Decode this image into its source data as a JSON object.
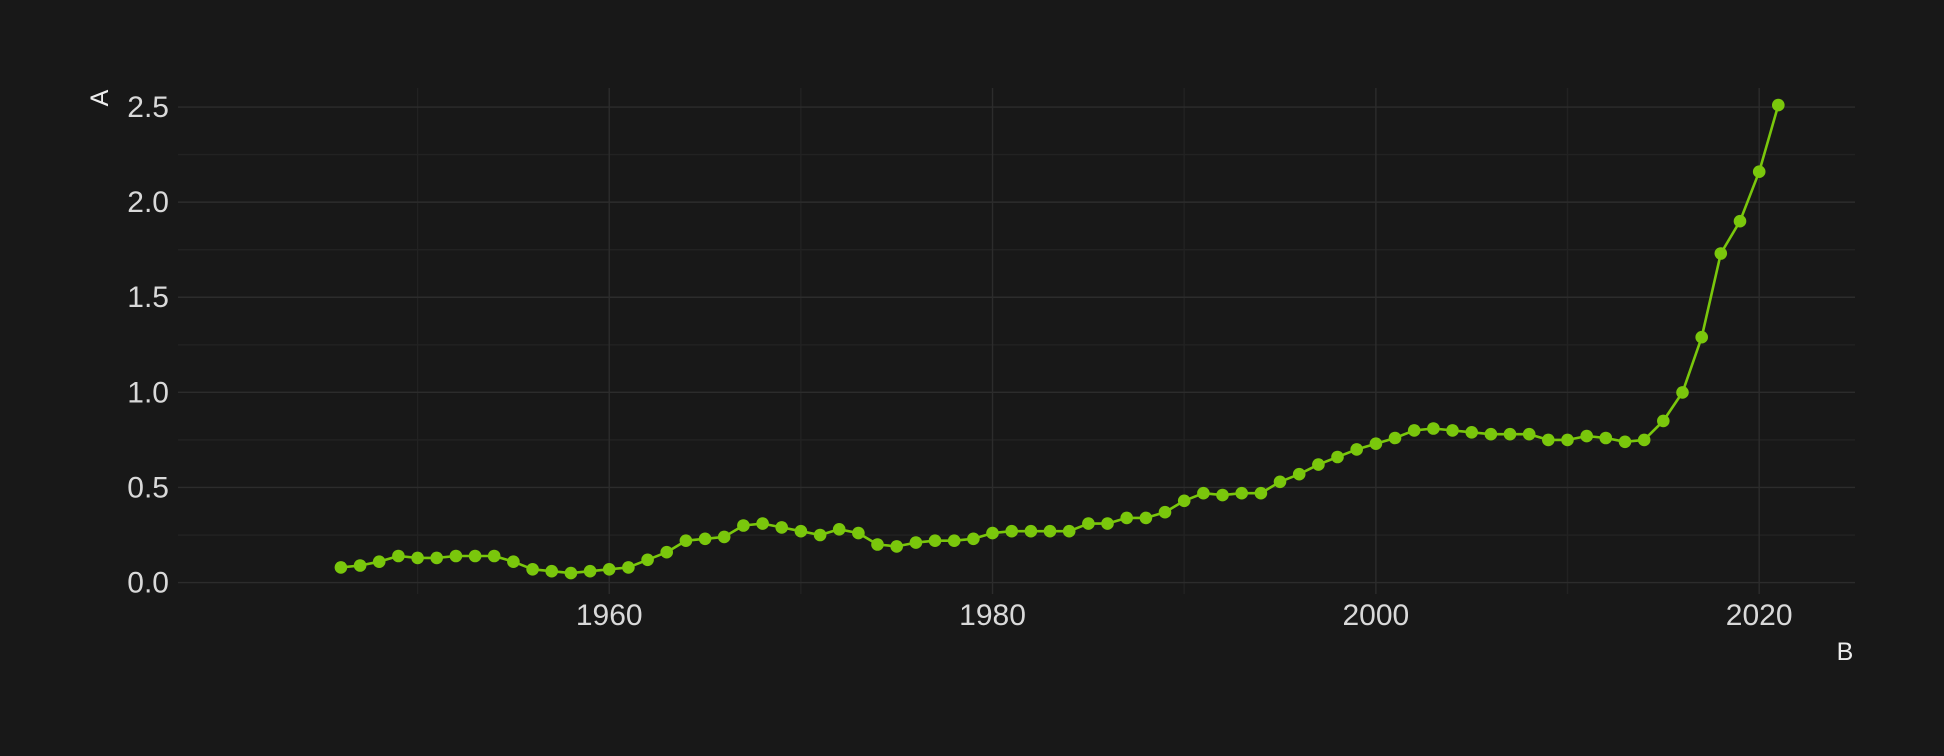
{
  "chart_data": {
    "type": "line",
    "title": "",
    "xlabel": "B",
    "ylabel": "A",
    "xlim": [
      1937.5,
      2025
    ],
    "ylim": [
      -0.06,
      2.6
    ],
    "x_ticks": [
      1960,
      1980,
      2000,
      2020
    ],
    "x_minor_ticks": [
      1950,
      1970,
      1990,
      2010
    ],
    "y_ticks": [
      0.0,
      0.5,
      1.0,
      1.5,
      2.0,
      2.5
    ],
    "y_tick_labels": [
      "0.0",
      "0.5",
      "1.0",
      "1.5",
      "2.0",
      "2.5"
    ],
    "grid": true,
    "legend": "none",
    "colors": {
      "background": "#181818",
      "line": "#7ac70c",
      "grid_major": "#2c2c2c",
      "grid_minor": "#222222"
    },
    "series": [
      {
        "x": [
          1946,
          1947,
          1948,
          1949,
          1950,
          1951,
          1952,
          1953,
          1954,
          1955,
          1956,
          1957,
          1958,
          1959,
          1960,
          1961,
          1962,
          1963,
          1964,
          1965,
          1966,
          1967,
          1968,
          1969,
          1970,
          1971,
          1972,
          1973,
          1974,
          1975,
          1976,
          1977,
          1978,
          1979,
          1980,
          1981,
          1982,
          1983,
          1984,
          1985,
          1986,
          1987,
          1988,
          1989,
          1990,
          1991,
          1992,
          1993,
          1994,
          1995,
          1996,
          1997,
          1998,
          1999,
          2000,
          2001,
          2002,
          2003,
          2004,
          2005,
          2006,
          2007,
          2008,
          2009,
          2010,
          2011,
          2012,
          2013,
          2014,
          2015,
          2016,
          2017,
          2018,
          2019,
          2020,
          2021
        ],
        "values": [
          0.08,
          0.09,
          0.11,
          0.14,
          0.13,
          0.13,
          0.14,
          0.14,
          0.14,
          0.11,
          0.07,
          0.06,
          0.05,
          0.06,
          0.07,
          0.08,
          0.12,
          0.16,
          0.22,
          0.23,
          0.24,
          0.3,
          0.31,
          0.29,
          0.27,
          0.25,
          0.28,
          0.26,
          0.2,
          0.19,
          0.21,
          0.22,
          0.22,
          0.23,
          0.26,
          0.27,
          0.27,
          0.27,
          0.27,
          0.31,
          0.31,
          0.34,
          0.34,
          0.37,
          0.43,
          0.47,
          0.46,
          0.47,
          0.47,
          0.53,
          0.57,
          0.62,
          0.66,
          0.7,
          0.73,
          0.76,
          0.8,
          0.81,
          0.8,
          0.79,
          0.78,
          0.78,
          0.78,
          0.75,
          0.75,
          0.77,
          0.76,
          0.74,
          0.75,
          0.85,
          1.0,
          1.29,
          1.73,
          1.9,
          2.16,
          2.51
        ]
      }
    ]
  }
}
